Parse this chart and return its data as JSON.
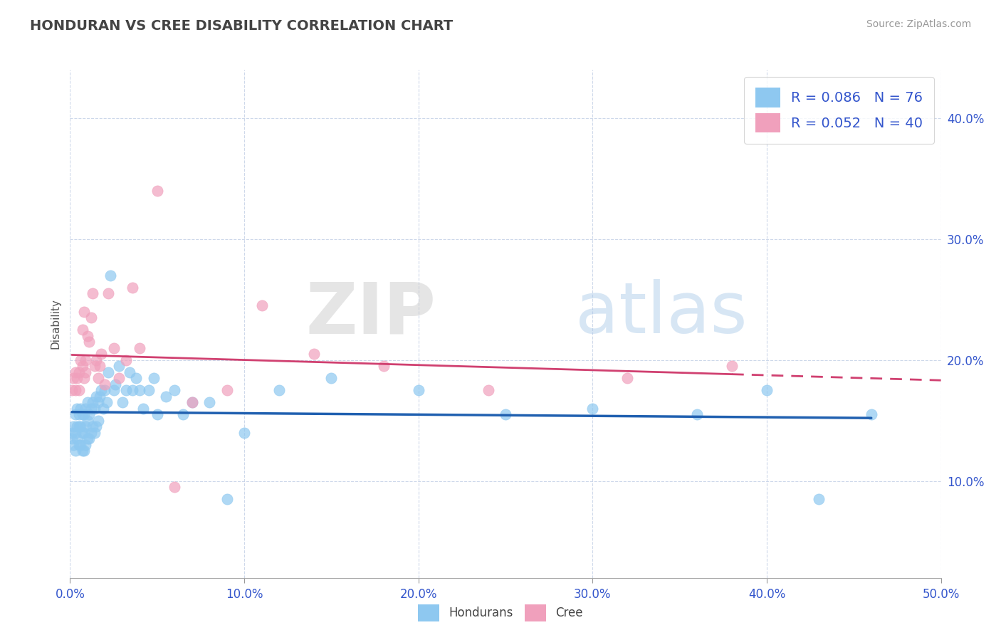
{
  "title": "HONDURAN VS CREE DISABILITY CORRELATION CHART",
  "source": "Source: ZipAtlas.com",
  "xlim": [
    0,
    0.5
  ],
  "ylim": [
    0.02,
    0.44
  ],
  "hondurans_color": "#8ec8f0",
  "cree_color": "#f0a0bc",
  "hondurans_line_color": "#2060b0",
  "cree_line_color": "#d04070",
  "legend_color": "#3355cc",
  "R_hondurans": 0.086,
  "N_hondurans": 76,
  "R_cree": 0.052,
  "N_cree": 40,
  "hondurans_x": [
    0.001,
    0.001,
    0.002,
    0.002,
    0.003,
    0.003,
    0.003,
    0.004,
    0.004,
    0.004,
    0.005,
    0.005,
    0.005,
    0.006,
    0.006,
    0.006,
    0.007,
    0.007,
    0.007,
    0.008,
    0.008,
    0.008,
    0.009,
    0.009,
    0.009,
    0.01,
    0.01,
    0.01,
    0.011,
    0.011,
    0.012,
    0.012,
    0.013,
    0.013,
    0.014,
    0.014,
    0.015,
    0.015,
    0.016,
    0.016,
    0.017,
    0.018,
    0.019,
    0.02,
    0.021,
    0.022,
    0.023,
    0.025,
    0.026,
    0.028,
    0.03,
    0.032,
    0.034,
    0.036,
    0.038,
    0.04,
    0.042,
    0.045,
    0.048,
    0.05,
    0.055,
    0.06,
    0.065,
    0.07,
    0.08,
    0.09,
    0.1,
    0.12,
    0.15,
    0.2,
    0.25,
    0.3,
    0.36,
    0.4,
    0.43,
    0.46
  ],
  "hondurans_y": [
    0.135,
    0.14,
    0.13,
    0.145,
    0.125,
    0.14,
    0.155,
    0.135,
    0.145,
    0.16,
    0.13,
    0.145,
    0.155,
    0.13,
    0.145,
    0.16,
    0.125,
    0.14,
    0.155,
    0.125,
    0.14,
    0.155,
    0.13,
    0.145,
    0.16,
    0.135,
    0.15,
    0.165,
    0.135,
    0.155,
    0.14,
    0.16,
    0.145,
    0.165,
    0.14,
    0.16,
    0.145,
    0.17,
    0.15,
    0.165,
    0.17,
    0.175,
    0.16,
    0.175,
    0.165,
    0.19,
    0.27,
    0.175,
    0.18,
    0.195,
    0.165,
    0.175,
    0.19,
    0.175,
    0.185,
    0.175,
    0.16,
    0.175,
    0.185,
    0.155,
    0.17,
    0.175,
    0.155,
    0.165,
    0.165,
    0.085,
    0.14,
    0.175,
    0.185,
    0.175,
    0.155,
    0.16,
    0.155,
    0.175,
    0.085,
    0.155
  ],
  "cree_x": [
    0.001,
    0.002,
    0.003,
    0.003,
    0.004,
    0.005,
    0.005,
    0.006,
    0.007,
    0.007,
    0.008,
    0.008,
    0.009,
    0.009,
    0.01,
    0.011,
    0.012,
    0.013,
    0.014,
    0.015,
    0.016,
    0.017,
    0.018,
    0.02,
    0.022,
    0.025,
    0.028,
    0.032,
    0.036,
    0.04,
    0.05,
    0.06,
    0.07,
    0.09,
    0.11,
    0.14,
    0.18,
    0.24,
    0.32,
    0.38
  ],
  "cree_y": [
    0.175,
    0.185,
    0.175,
    0.19,
    0.185,
    0.19,
    0.175,
    0.2,
    0.195,
    0.225,
    0.185,
    0.24,
    0.2,
    0.19,
    0.22,
    0.215,
    0.235,
    0.255,
    0.195,
    0.2,
    0.185,
    0.195,
    0.205,
    0.18,
    0.255,
    0.21,
    0.185,
    0.2,
    0.26,
    0.21,
    0.34,
    0.095,
    0.165,
    0.175,
    0.245,
    0.205,
    0.195,
    0.175,
    0.185,
    0.195
  ],
  "watermark_zip": "ZIP",
  "watermark_atlas": "atlas",
  "grid_color": "#c8d4e8",
  "background_color": "#ffffff",
  "title_color": "#444444",
  "axis_color": "#3355cc"
}
